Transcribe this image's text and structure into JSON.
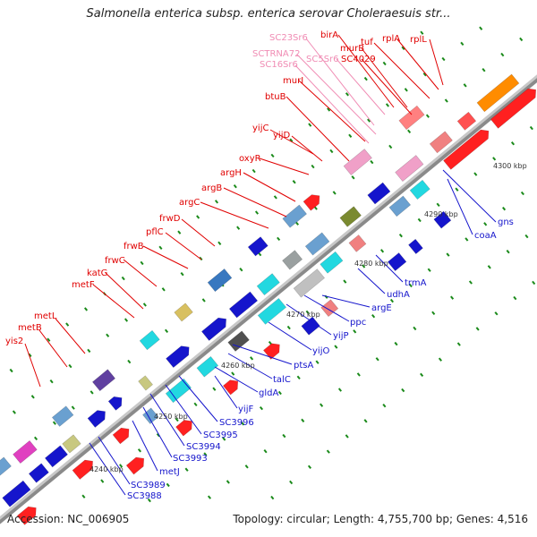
{
  "title": "Salmonella enterica subsp. enterica serovar Choleraesuis str...",
  "footer": {
    "accession": "Accession: NC_006905",
    "summary": "Topology: circular; Length: 4,755,700 bp; Genes: 4,516"
  },
  "colors": {
    "forward_label": "#e00000",
    "reverse_label": "#1515cc",
    "rna_label": "#f08cb4",
    "backbone": "#a0a0a0",
    "tick": "#1a8a1a"
  },
  "scale_labels": [
    "4240 kbp",
    "4250 kbp",
    "4260 kbp",
    "4270 kbp",
    "4280 kbp",
    "4290 kbp",
    "4300 kbp"
  ],
  "labels_forward": [
    "yis2",
    "metB",
    "metL",
    "metF",
    "katG",
    "frwC",
    "frwB",
    "pflC",
    "frwD",
    "argC",
    "argB",
    "argH",
    "oxyR",
    "yijC",
    "yijD",
    "btuB",
    "murI",
    "birA",
    "murB",
    "SC4029",
    "tuf",
    "rplA",
    "rplL"
  ],
  "labels_rna": [
    "SC23Sr6",
    "SCTRNA72",
    "SC16Sr6",
    "SC5Sr6"
  ],
  "labels_reverse": [
    "SC3988",
    "SC3989",
    "metJ",
    "SC3993",
    "SC3994",
    "SC3995",
    "SC3996",
    "yijF",
    "gldA",
    "talC",
    "ptsA",
    "yijO",
    "yijP",
    "ppc",
    "argE",
    "udhA",
    "trmA",
    "coaA",
    "gns"
  ]
}
